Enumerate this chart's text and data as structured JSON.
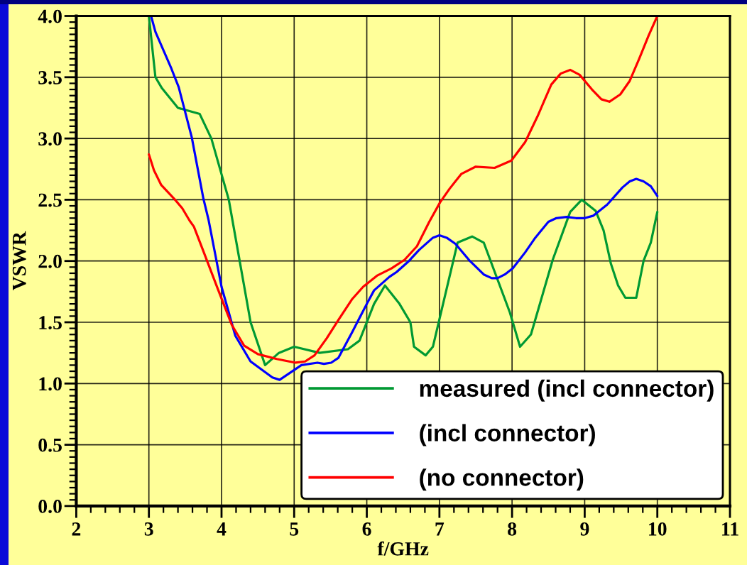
{
  "chart_data": {
    "type": "line",
    "xlabel": "f/GHz",
    "ylabel": "VSWR",
    "xlim": [
      2,
      11
    ],
    "ylim": [
      0,
      4
    ],
    "xticks": [
      2,
      {
        "value": 2.2,
        "label": null
      },
      {
        "value": 2.4,
        "label": null
      },
      {
        "value": 2.6,
        "label": null
      },
      {
        "value": 2.8,
        "label": null
      },
      3,
      {
        "value": 3.2,
        "label": null
      },
      {
        "value": 3.4,
        "label": null
      },
      {
        "value": 3.6,
        "label": null
      },
      {
        "value": 3.8,
        "label": null
      },
      4,
      {
        "value": 4.2,
        "label": null
      },
      {
        "value": 4.4,
        "label": null
      },
      {
        "value": 4.6,
        "label": null
      },
      {
        "value": 4.8,
        "label": null
      },
      5,
      {
        "value": 5.2,
        "label": null
      },
      {
        "value": 5.4,
        "label": null
      },
      {
        "value": 5.6,
        "label": null
      },
      {
        "value": 5.8,
        "label": null
      },
      6,
      {
        "value": 6.2,
        "label": null
      },
      {
        "value": 6.4,
        "label": null
      },
      {
        "value": 6.6,
        "label": null
      },
      {
        "value": 6.8,
        "label": null
      },
      7,
      {
        "value": 7.2,
        "label": null
      },
      {
        "value": 7.4,
        "label": null
      },
      {
        "value": 7.6,
        "label": null
      },
      {
        "value": 7.8,
        "label": null
      },
      8,
      {
        "value": 8.2,
        "label": null
      },
      {
        "value": 8.4,
        "label": null
      },
      {
        "value": 8.6,
        "label": null
      },
      {
        "value": 8.8,
        "label": null
      },
      9,
      {
        "value": 9.2,
        "label": null
      },
      {
        "value": 9.4,
        "label": null
      },
      {
        "value": 9.6,
        "label": null
      },
      {
        "value": 9.8,
        "label": null
      },
      10,
      {
        "value": 10.2,
        "label": null
      },
      {
        "value": 10.4,
        "label": null
      },
      {
        "value": 10.6,
        "label": null
      },
      {
        "value": 10.8,
        "label": null
      },
      11
    ],
    "yticks": [
      {
        "value": 0,
        "label": "0.0"
      },
      {
        "value": 0.05,
        "label": null
      },
      {
        "value": 0.1,
        "label": null
      },
      {
        "value": 0.15,
        "label": null
      },
      {
        "value": 0.2,
        "label": null
      },
      {
        "value": 0.25,
        "label": null
      },
      {
        "value": 0.3,
        "label": null
      },
      {
        "value": 0.35,
        "label": null
      },
      {
        "value": 0.4,
        "label": null
      },
      {
        "value": 0.45,
        "label": null
      },
      0.5,
      {
        "value": 0.55,
        "label": null
      },
      {
        "value": 0.6,
        "label": null
      },
      {
        "value": 0.65,
        "label": null
      },
      {
        "value": 0.7,
        "label": null
      },
      {
        "value": 0.75,
        "label": null
      },
      {
        "value": 0.8,
        "label": null
      },
      {
        "value": 0.85,
        "label": null
      },
      {
        "value": 0.9,
        "label": null
      },
      {
        "value": 0.95,
        "label": null
      },
      {
        "value": 1,
        "label": "1.0"
      },
      {
        "value": 1.05,
        "label": null
      },
      {
        "value": 1.1,
        "label": null
      },
      {
        "value": 1.15,
        "label": null
      },
      {
        "value": 1.2,
        "label": null
      },
      {
        "value": 1.25,
        "label": null
      },
      {
        "value": 1.3,
        "label": null
      },
      {
        "value": 1.35,
        "label": null
      },
      {
        "value": 1.4,
        "label": null
      },
      {
        "value": 1.45,
        "label": null
      },
      1.5,
      {
        "value": 1.55,
        "label": null
      },
      {
        "value": 1.6,
        "label": null
      },
      {
        "value": 1.65,
        "label": null
      },
      {
        "value": 1.7,
        "label": null
      },
      {
        "value": 1.75,
        "label": null
      },
      {
        "value": 1.8,
        "label": null
      },
      {
        "value": 1.85,
        "label": null
      },
      {
        "value": 1.9,
        "label": null
      },
      {
        "value": 1.95,
        "label": null
      },
      {
        "value": 2,
        "label": "2.0"
      },
      {
        "value": 2.05,
        "label": null
      },
      {
        "value": 2.1,
        "label": null
      },
      {
        "value": 2.15,
        "label": null
      },
      {
        "value": 2.2,
        "label": null
      },
      {
        "value": 2.25,
        "label": null
      },
      {
        "value": 2.3,
        "label": null
      },
      {
        "value": 2.35,
        "label": null
      },
      {
        "value": 2.4,
        "label": null
      },
      {
        "value": 2.45,
        "label": null
      },
      2.5,
      {
        "value": 2.55,
        "label": null
      },
      {
        "value": 2.6,
        "label": null
      },
      {
        "value": 2.65,
        "label": null
      },
      {
        "value": 2.7,
        "label": null
      },
      {
        "value": 2.75,
        "label": null
      },
      {
        "value": 2.8,
        "label": null
      },
      {
        "value": 2.85,
        "label": null
      },
      {
        "value": 2.9,
        "label": null
      },
      {
        "value": 2.95,
        "label": null
      },
      {
        "value": 3,
        "label": "3.0"
      },
      {
        "value": 3.05,
        "label": null
      },
      {
        "value": 3.1,
        "label": null
      },
      {
        "value": 3.15,
        "label": null
      },
      {
        "value": 3.2,
        "label": null
      },
      {
        "value": 3.25,
        "label": null
      },
      {
        "value": 3.3,
        "label": null
      },
      {
        "value": 3.35,
        "label": null
      },
      {
        "value": 3.4,
        "label": null
      },
      {
        "value": 3.45,
        "label": null
      },
      3.5,
      {
        "value": 3.55,
        "label": null
      },
      {
        "value": 3.6,
        "label": null
      },
      {
        "value": 3.65,
        "label": null
      },
      {
        "value": 3.7,
        "label": null
      },
      {
        "value": 3.75,
        "label": null
      },
      {
        "value": 3.8,
        "label": null
      },
      {
        "value": 3.85,
        "label": null
      },
      {
        "value": 3.9,
        "label": null
      },
      {
        "value": 3.95,
        "label": null
      },
      {
        "value": 4,
        "label": "4.0"
      }
    ],
    "grid": true,
    "legend": "bottom right",
    "marker": "none",
    "line_style": "solid",
    "series": [
      {
        "name": "measured (incl connector)",
        "color": "#009933",
        "x": [
          3.0,
          3.09,
          3.18,
          3.4,
          3.7,
          3.86,
          4.1,
          4.4,
          4.6,
          4.79,
          5.0,
          5.35,
          5.74,
          5.9,
          6.1,
          6.25,
          6.45,
          6.6,
          6.65,
          6.81,
          6.91,
          7.25,
          7.45,
          7.61,
          7.97,
          8.11,
          8.26,
          8.56,
          8.8,
          8.96,
          9.15,
          9.26,
          9.36,
          9.46,
          9.56,
          9.71,
          9.81,
          9.91,
          10.0
        ],
        "values": [
          4.0,
          3.5,
          3.41,
          3.25,
          3.2,
          3.0,
          2.5,
          1.5,
          1.15,
          1.25,
          1.3,
          1.25,
          1.28,
          1.35,
          1.65,
          1.8,
          1.65,
          1.5,
          1.3,
          1.23,
          1.3,
          2.15,
          2.2,
          2.15,
          1.58,
          1.3,
          1.4,
          2.01,
          2.4,
          2.5,
          2.41,
          2.25,
          1.98,
          1.8,
          1.7,
          1.7,
          2.0,
          2.15,
          2.4
        ]
      },
      {
        "name": "(incl connector)",
        "color": "#0000ff",
        "x": [
          3.03,
          3.09,
          3.31,
          3.41,
          3.59,
          3.75,
          3.82,
          4.0,
          4.19,
          4.4,
          4.7,
          4.8,
          5.1,
          5.32,
          5.41,
          5.51,
          5.61,
          5.8,
          6.0,
          6.1,
          6.31,
          6.41,
          6.58,
          6.72,
          6.91,
          7.0,
          7.1,
          7.22,
          7.42,
          7.61,
          7.72,
          7.8,
          7.9,
          8.01,
          8.18,
          8.32,
          8.5,
          8.61,
          8.75,
          8.88,
          9.0,
          9.12,
          9.31,
          9.52,
          9.62,
          9.71,
          9.81,
          9.91,
          10.0
        ],
        "values": [
          4.0,
          3.87,
          3.57,
          3.42,
          3.01,
          2.51,
          2.34,
          1.79,
          1.39,
          1.18,
          1.05,
          1.03,
          1.15,
          1.17,
          1.16,
          1.17,
          1.21,
          1.42,
          1.65,
          1.76,
          1.87,
          1.91,
          2.0,
          2.09,
          2.19,
          2.21,
          2.19,
          2.14,
          2.0,
          1.89,
          1.86,
          1.86,
          1.89,
          1.94,
          2.07,
          2.19,
          2.32,
          2.35,
          2.36,
          2.35,
          2.35,
          2.37,
          2.46,
          2.6,
          2.65,
          2.67,
          2.65,
          2.61,
          2.53
        ]
      },
      {
        "name": "(no connector)",
        "color": "#ff0000",
        "x": [
          3.0,
          3.07,
          3.17,
          3.36,
          3.46,
          3.56,
          3.62,
          3.75,
          3.95,
          4.14,
          4.31,
          4.5,
          4.76,
          5.02,
          5.15,
          5.28,
          5.45,
          5.61,
          5.8,
          5.95,
          6.14,
          6.34,
          6.52,
          6.69,
          6.86,
          7.01,
          7.14,
          7.3,
          7.5,
          7.76,
          7.99,
          8.18,
          8.35,
          8.54,
          8.67,
          8.8,
          8.93,
          9.1,
          9.23,
          9.34,
          9.49,
          9.62,
          9.75,
          9.88,
          10.0
        ],
        "values": [
          2.87,
          2.74,
          2.62,
          2.5,
          2.43,
          2.33,
          2.28,
          2.08,
          1.77,
          1.48,
          1.31,
          1.24,
          1.2,
          1.17,
          1.18,
          1.23,
          1.37,
          1.52,
          1.69,
          1.79,
          1.88,
          1.94,
          2.01,
          2.12,
          2.32,
          2.48,
          2.59,
          2.71,
          2.77,
          2.76,
          2.82,
          2.97,
          3.18,
          3.44,
          3.53,
          3.56,
          3.52,
          3.4,
          3.32,
          3.3,
          3.36,
          3.47,
          3.65,
          3.84,
          4.0
        ]
      }
    ]
  }
}
